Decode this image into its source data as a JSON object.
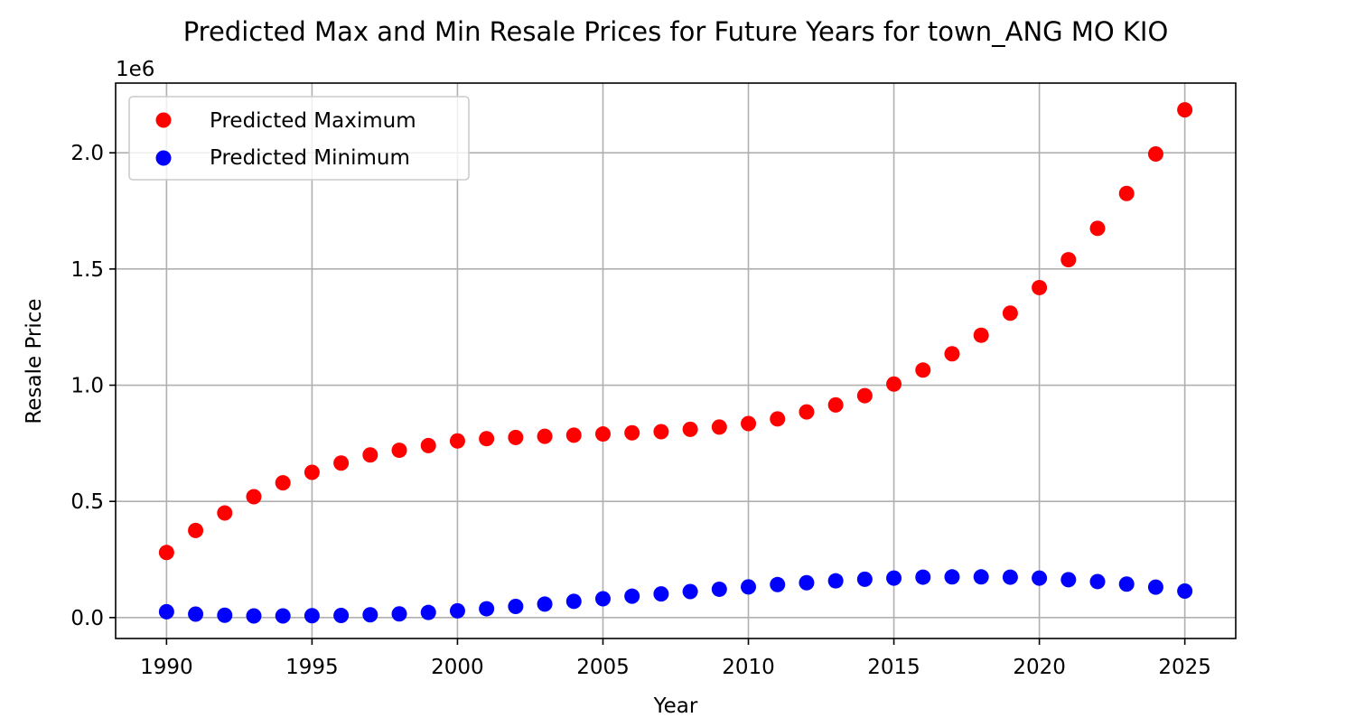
{
  "chart_data": {
    "type": "scatter",
    "title": "Predicted Max and Min Resale Prices for Future Years for town_ANG MO KIO",
    "xlabel": "Year",
    "ylabel": "Resale Price",
    "offset_label": "1e6",
    "xlim": [
      1988.25,
      2026.75
    ],
    "ylim": [
      -0.09,
      2.3
    ],
    "x_ticks": [
      1990,
      1995,
      2000,
      2005,
      2010,
      2015,
      2020,
      2025
    ],
    "x_tick_labels": [
      "1990",
      "1995",
      "2000",
      "2005",
      "2010",
      "2015",
      "2020",
      "2025"
    ],
    "y_ticks": [
      0.0,
      0.5,
      1.0,
      1.5,
      2.0
    ],
    "y_tick_labels": [
      "0.0",
      "0.5",
      "1.0",
      "1.5",
      "2.0"
    ],
    "y_unit_scale": 1000000,
    "grid": true,
    "legend_position": "top-left",
    "x": [
      1990,
      1991,
      1992,
      1993,
      1994,
      1995,
      1996,
      1997,
      1998,
      1999,
      2000,
      2001,
      2002,
      2003,
      2004,
      2005,
      2006,
      2007,
      2008,
      2009,
      2010,
      2011,
      2012,
      2013,
      2014,
      2015,
      2016,
      2017,
      2018,
      2019,
      2020,
      2021,
      2022,
      2023,
      2024,
      2025
    ],
    "series": [
      {
        "name": "Predicted Maximum",
        "color": "#ff0000",
        "values": [
          0.28,
          0.375,
          0.45,
          0.52,
          0.58,
          0.625,
          0.665,
          0.7,
          0.72,
          0.74,
          0.76,
          0.77,
          0.775,
          0.78,
          0.785,
          0.79,
          0.795,
          0.8,
          0.81,
          0.82,
          0.835,
          0.855,
          0.885,
          0.915,
          0.955,
          1.005,
          1.065,
          1.135,
          1.215,
          1.31,
          1.42,
          1.54,
          1.675,
          1.825,
          1.995,
          2.185
        ]
      },
      {
        "name": "Predicted Minimum",
        "color": "#0000ff",
        "values": [
          0.025,
          0.015,
          0.01,
          0.007,
          0.007,
          0.008,
          0.009,
          0.012,
          0.016,
          0.022,
          0.029,
          0.038,
          0.048,
          0.058,
          0.07,
          0.081,
          0.092,
          0.102,
          0.112,
          0.122,
          0.132,
          0.142,
          0.15,
          0.158,
          0.165,
          0.17,
          0.174,
          0.175,
          0.175,
          0.174,
          0.17,
          0.163,
          0.155,
          0.144,
          0.131,
          0.114
        ]
      }
    ]
  }
}
